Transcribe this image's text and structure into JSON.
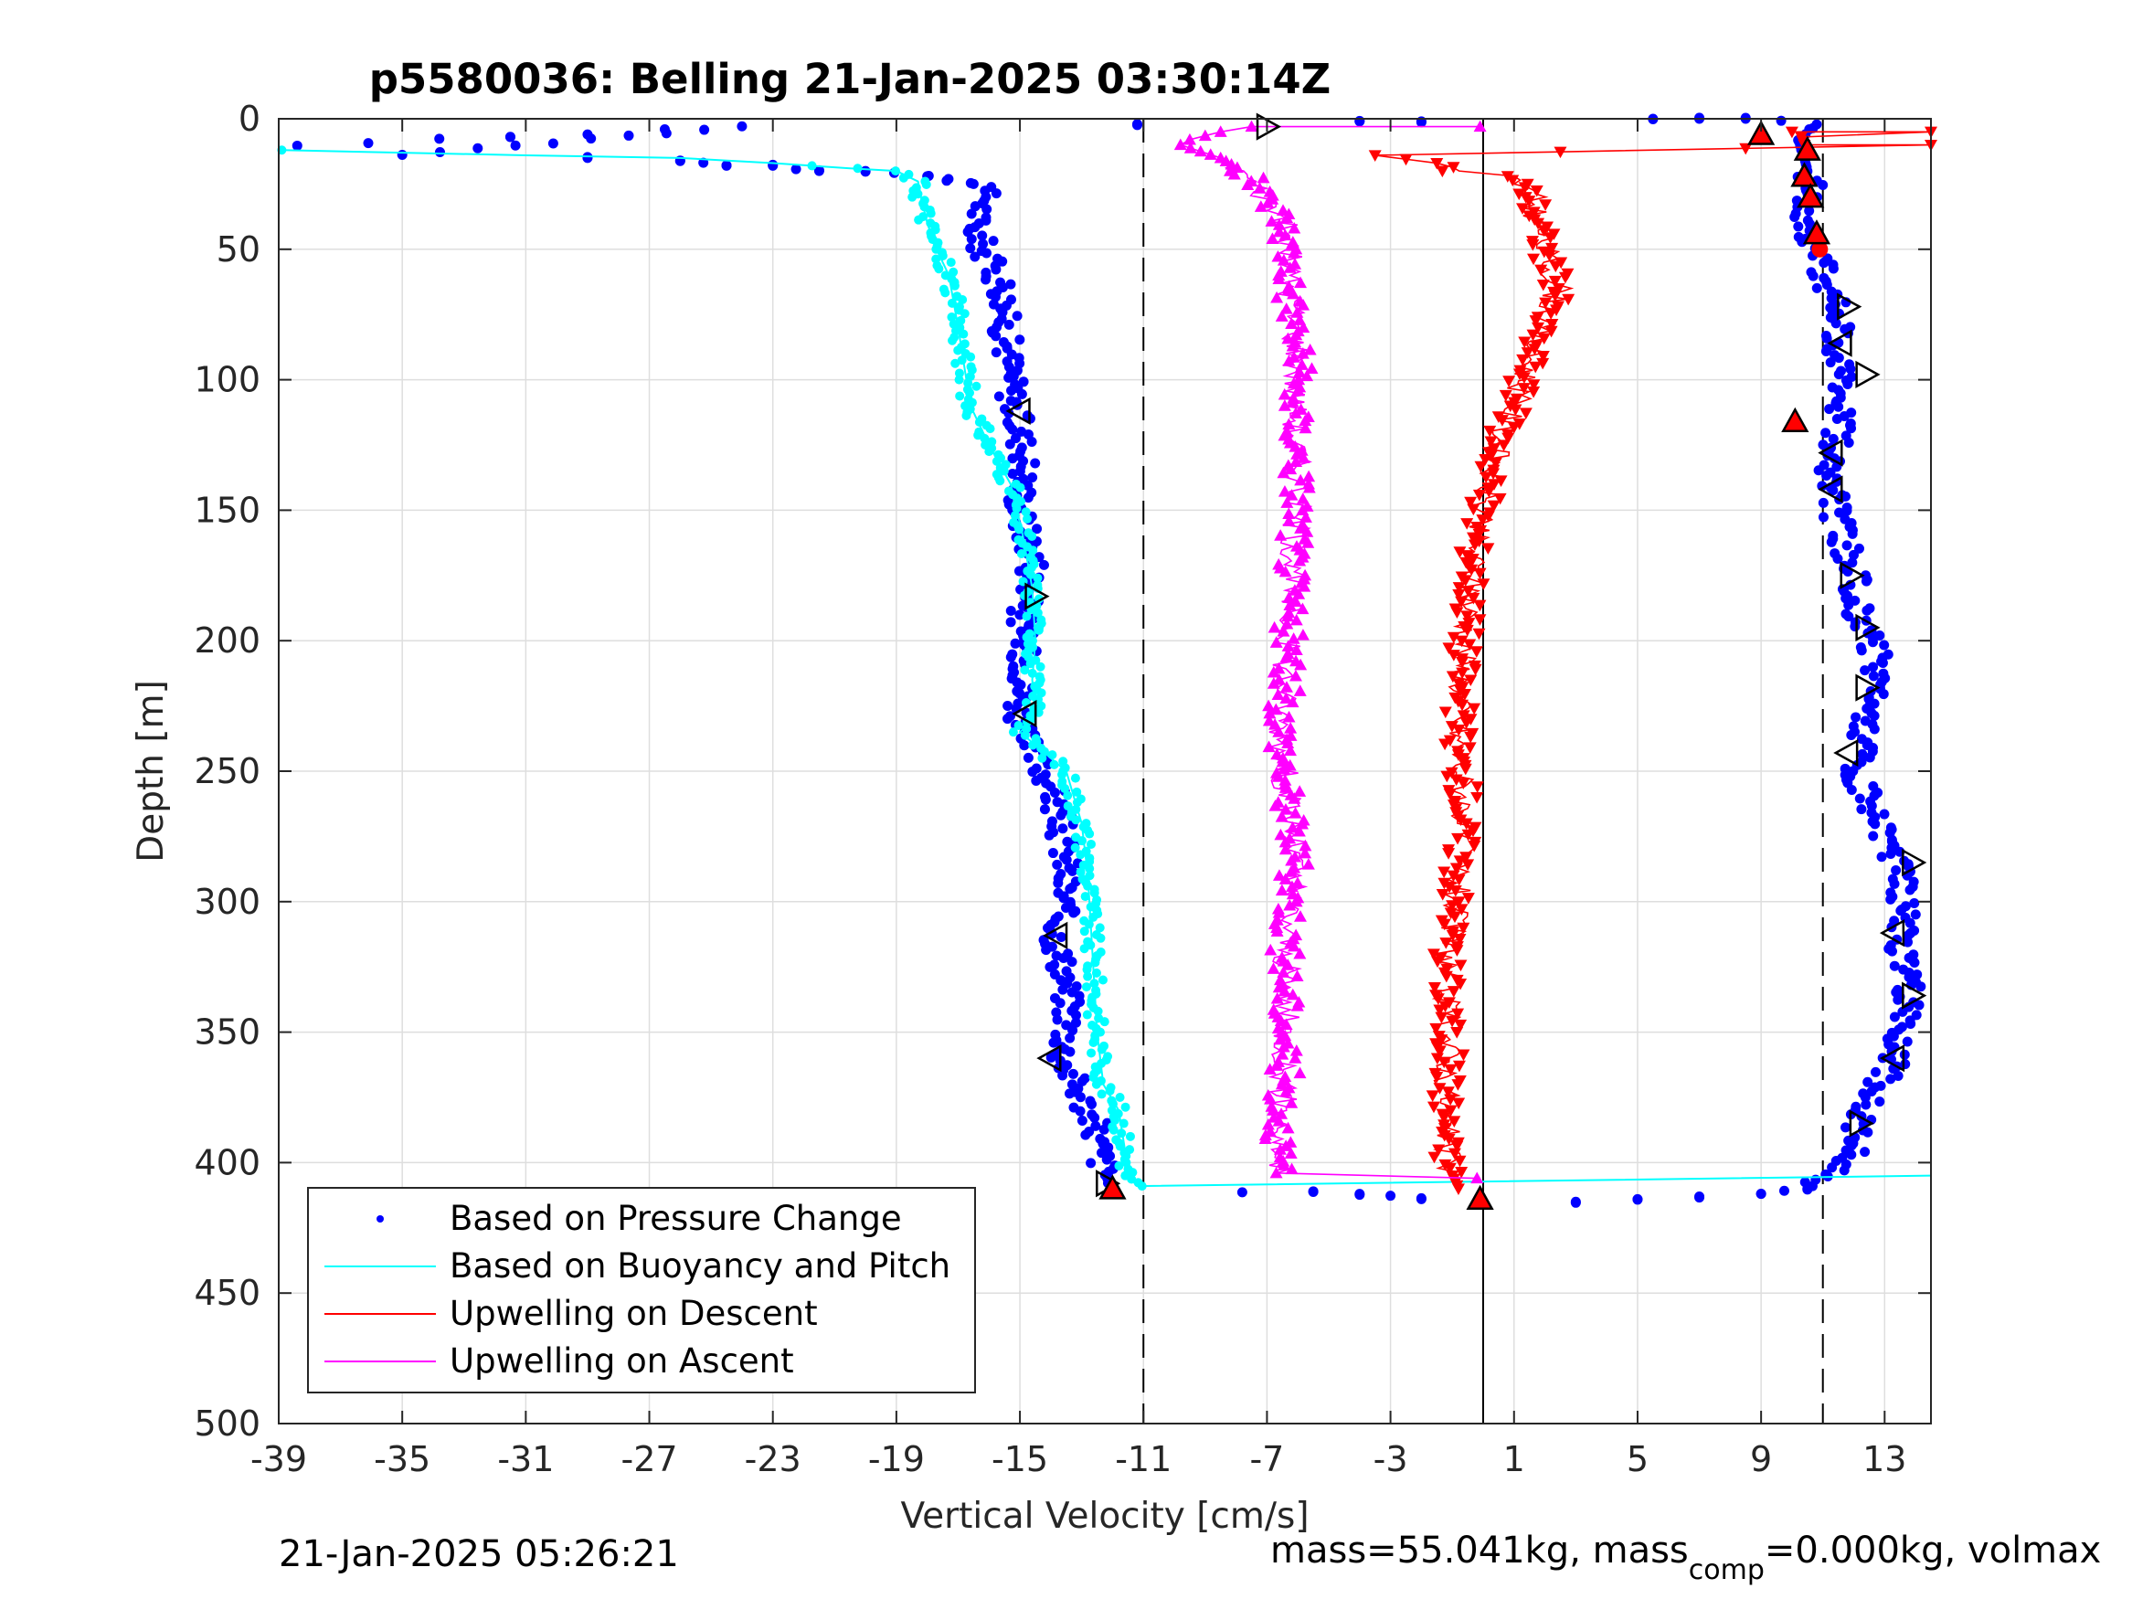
{
  "chart_data": {
    "type": "scatter",
    "title": "p5580036: Belling 21-Jan-2025 03:30:14Z",
    "xlabel": "Vertical Velocity [cm/s]",
    "ylabel": "Depth [m]",
    "xlim": [
      -39,
      14.5
    ],
    "ylim": [
      0,
      500
    ],
    "y_reversed": true,
    "grid": true,
    "x_ticks": [
      "-39",
      "-35",
      "-31",
      "-27",
      "-23",
      "-19",
      "-15",
      "-11",
      "-7",
      "-3",
      "1",
      "5",
      "9",
      "13"
    ],
    "y_ticks": [
      "0",
      "50",
      "100",
      "150",
      "200",
      "250",
      "300",
      "350",
      "400",
      "450",
      "500"
    ],
    "legend_position": "bottom-left",
    "legend": [
      {
        "label": "Based on Pressure Change",
        "color": "#0000ff",
        "marker": "dot"
      },
      {
        "label": "Based on Buoyancy and Pitch",
        "color": "#00ffff",
        "marker": "line"
      },
      {
        "label": "Upwelling on Descent",
        "color": "#ff0000",
        "marker": "line"
      },
      {
        "label": "Upwelling on Ascent",
        "color": "#ff00ff",
        "marker": "line"
      }
    ],
    "reference_lines": [
      {
        "x": -11,
        "style": "dashed"
      },
      {
        "x": 11,
        "style": "dashed"
      },
      {
        "x": 0,
        "style": "solid"
      }
    ],
    "series": [
      {
        "name": "Based on Pressure Change (descent)",
        "color": "#0000ff",
        "points": [
          [
            -38.4,
            10
          ],
          [
            -31.5,
            7
          ],
          [
            -24,
            3
          ],
          [
            -35,
            14
          ],
          [
            -29,
            15
          ],
          [
            -26,
            16
          ],
          [
            -24.5,
            18
          ],
          [
            -23,
            18
          ],
          [
            -21.5,
            20
          ],
          [
            -20,
            20
          ],
          [
            -18,
            22
          ],
          [
            -16.5,
            25
          ],
          [
            -16,
            30
          ],
          [
            -16.5,
            40
          ],
          [
            -16,
            55
          ],
          [
            -15.5,
            65
          ],
          [
            -15.5,
            80
          ],
          [
            -15.3,
            95
          ],
          [
            -15.2,
            110
          ],
          [
            -15,
            120
          ],
          [
            -14.8,
            130
          ],
          [
            -15,
            150
          ],
          [
            -14.5,
            170
          ],
          [
            -14.8,
            185
          ],
          [
            -15,
            195
          ],
          [
            -14.8,
            210
          ],
          [
            -15,
            225
          ],
          [
            -15,
            235
          ],
          [
            -14.5,
            245
          ],
          [
            -14,
            255
          ],
          [
            -13.7,
            270
          ],
          [
            -13.5,
            285
          ],
          [
            -13.6,
            300
          ],
          [
            -13.8,
            315
          ],
          [
            -13.5,
            330
          ],
          [
            -13.4,
            345
          ],
          [
            -13.6,
            360
          ],
          [
            -13,
            375
          ],
          [
            -12.6,
            385
          ],
          [
            -12.3,
            400
          ],
          [
            -12,
            410
          ]
        ]
      },
      {
        "name": "Based on Pressure Change (ascent)",
        "color": "#0000ff",
        "points": [
          [
            -7.8,
            411
          ],
          [
            -5.5,
            411
          ],
          [
            -4,
            412
          ],
          [
            -2,
            414
          ],
          [
            3,
            415
          ],
          [
            5,
            414
          ],
          [
            7,
            413
          ],
          [
            9,
            412
          ],
          [
            10.5,
            410
          ],
          [
            11.5,
            403
          ],
          [
            12,
            395
          ],
          [
            12.2,
            385
          ],
          [
            12.5,
            375
          ],
          [
            13.3,
            362
          ],
          [
            13.5,
            350
          ],
          [
            13.8,
            335
          ],
          [
            13.5,
            320
          ],
          [
            13.7,
            305
          ],
          [
            13.5,
            290
          ],
          [
            13,
            275
          ],
          [
            12.5,
            262
          ],
          [
            12,
            250
          ],
          [
            12.3,
            240
          ],
          [
            12.5,
            225
          ],
          [
            12.8,
            210
          ],
          [
            12.5,
            198
          ],
          [
            12,
            185
          ],
          [
            12,
            175
          ],
          [
            11.8,
            165
          ],
          [
            11.5,
            155
          ],
          [
            11.3,
            145
          ],
          [
            11.3,
            130
          ],
          [
            11.5,
            120
          ],
          [
            11.7,
            108
          ],
          [
            11.7,
            98
          ],
          [
            11.5,
            88
          ],
          [
            11.5,
            75
          ],
          [
            11.2,
            65
          ],
          [
            10.9,
            55
          ],
          [
            10.6,
            45
          ],
          [
            10.5,
            35
          ],
          [
            10.6,
            25
          ],
          [
            10.4,
            15
          ],
          [
            10.2,
            8
          ],
          [
            10.8,
            2
          ],
          [
            8.5,
            0
          ],
          [
            7,
            0
          ],
          [
            5.5,
            0
          ],
          [
            -2,
            1
          ],
          [
            -4,
            1
          ],
          [
            -11.2,
            2
          ]
        ]
      },
      {
        "name": "Based on Buoyancy and Pitch",
        "color": "#00ffff",
        "points": [
          [
            -38.9,
            12
          ],
          [
            -31,
            14
          ],
          [
            -26,
            15
          ],
          [
            -23,
            17
          ],
          [
            -20.5,
            19
          ],
          [
            -19,
            20
          ],
          [
            -18.3,
            24
          ],
          [
            -18.2,
            30
          ],
          [
            -18,
            40
          ],
          [
            -17.7,
            50
          ],
          [
            -17.3,
            60
          ],
          [
            -17,
            80
          ],
          [
            -16.8,
            95
          ],
          [
            -16.6,
            110
          ],
          [
            -16,
            125
          ],
          [
            -15.3,
            140
          ],
          [
            -14.9,
            160
          ],
          [
            -14.6,
            180
          ],
          [
            -14.5,
            200
          ],
          [
            -14.6,
            215
          ],
          [
            -14.5,
            230
          ],
          [
            -15,
            235
          ],
          [
            -14.5,
            240
          ],
          [
            -13.5,
            250
          ],
          [
            -13,
            270
          ],
          [
            -12.8,
            290
          ],
          [
            -12.7,
            310
          ],
          [
            -12.6,
            330
          ],
          [
            -12.5,
            350
          ],
          [
            -12.3,
            370
          ],
          [
            -11.8,
            380
          ],
          [
            -11.6,
            395
          ],
          [
            -11.5,
            405
          ],
          [
            -11.2,
            409
          ],
          [
            14.5,
            405
          ]
        ]
      },
      {
        "name": "Upwelling on Descent",
        "color": "#ff0000",
        "points": [
          [
            10,
            5
          ],
          [
            14.5,
            5
          ],
          [
            10.3,
            7
          ],
          [
            10.4,
            10
          ],
          [
            14.5,
            10
          ],
          [
            -3.5,
            14
          ],
          [
            -1.5,
            17
          ],
          [
            -1,
            20
          ],
          [
            0.8,
            22
          ],
          [
            1.2,
            25
          ],
          [
            1.6,
            30
          ],
          [
            1.8,
            40
          ],
          [
            2.1,
            55
          ],
          [
            2.5,
            65
          ],
          [
            1.8,
            80
          ],
          [
            1.5,
            95
          ],
          [
            1,
            110
          ],
          [
            0.5,
            125
          ],
          [
            0.2,
            140
          ],
          [
            -0.2,
            155
          ],
          [
            -0.3,
            170
          ],
          [
            -0.4,
            185
          ],
          [
            -0.6,
            200
          ],
          [
            -0.7,
            215
          ],
          [
            -0.8,
            230
          ],
          [
            -0.8,
            245
          ],
          [
            -0.6,
            260
          ],
          [
            -0.7,
            280
          ],
          [
            -0.9,
            300
          ],
          [
            -1.1,
            320
          ],
          [
            -1.2,
            340
          ],
          [
            -1.1,
            360
          ],
          [
            -1.2,
            380
          ],
          [
            -1.2,
            395
          ],
          [
            -1.0,
            405
          ],
          [
            -0.8,
            410
          ]
        ]
      },
      {
        "name": "Upwelling on Ascent",
        "color": "#ff00ff",
        "points": [
          [
            -0.1,
            3
          ],
          [
            -7.5,
            3
          ],
          [
            -8.5,
            5
          ],
          [
            -9.5,
            8
          ],
          [
            -9.8,
            10
          ],
          [
            -8.5,
            15
          ],
          [
            -7.8,
            20
          ],
          [
            -7.2,
            28
          ],
          [
            -6.5,
            38
          ],
          [
            -6.3,
            50
          ],
          [
            -6.2,
            70
          ],
          [
            -6.0,
            90
          ],
          [
            -6.1,
            110
          ],
          [
            -6.0,
            130
          ],
          [
            -6.0,
            150
          ],
          [
            -6.2,
            175
          ],
          [
            -6.3,
            195
          ],
          [
            -6.4,
            215
          ],
          [
            -6.5,
            235
          ],
          [
            -6.4,
            255
          ],
          [
            -6.1,
            280
          ],
          [
            -6.2,
            300
          ],
          [
            -6.4,
            320
          ],
          [
            -6.4,
            340
          ],
          [
            -6.4,
            360
          ],
          [
            -6.5,
            380
          ],
          [
            -6.6,
            395
          ],
          [
            -6.7,
            404
          ],
          [
            -0.2,
            406
          ]
        ]
      }
    ],
    "markers": {
      "open_triangles": [
        [
          -7,
          3,
          "right"
        ],
        [
          -15,
          112,
          "left"
        ],
        [
          -14.5,
          183,
          "right"
        ],
        [
          -14.8,
          228,
          "left"
        ],
        [
          -13.8,
          313,
          "left"
        ],
        [
          -14,
          360,
          "left"
        ],
        [
          -12.2,
          408,
          "right"
        ],
        [
          11.8,
          72,
          "right"
        ],
        [
          11.6,
          86,
          "left"
        ],
        [
          12.4,
          98,
          "right"
        ],
        [
          11.3,
          128,
          "left"
        ],
        [
          11.3,
          142,
          "left"
        ],
        [
          11.9,
          175,
          "right"
        ],
        [
          12.4,
          195,
          "right"
        ],
        [
          12.4,
          218,
          "right"
        ],
        [
          11.8,
          243,
          "left"
        ],
        [
          13.9,
          285,
          "right"
        ],
        [
          13.3,
          312,
          "left"
        ],
        [
          13.9,
          336,
          "right"
        ],
        [
          13.3,
          360,
          "left"
        ],
        [
          12.2,
          385,
          "right"
        ]
      ],
      "red_triangles": [
        [
          9,
          6
        ],
        [
          10.5,
          12
        ],
        [
          10.4,
          22
        ],
        [
          10.6,
          30
        ],
        [
          10.8,
          44
        ],
        [
          10.1,
          116
        ],
        [
          -12,
          410
        ],
        [
          -0.1,
          414
        ]
      ],
      "red_dots": [
        [
          10.9,
          50
        ]
      ]
    },
    "footer_left": "21-Jan-2025 05:26:21",
    "footer_right": "mass=55.041kg, mass",
    "footer_sub": "comp",
    "footer_right2": "=0.000kg, volmax"
  }
}
